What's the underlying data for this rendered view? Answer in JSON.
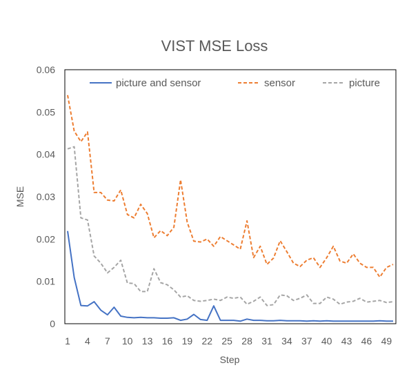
{
  "chart_data": {
    "type": "line",
    "title": "VIST MSE Loss",
    "xlabel": "Step",
    "ylabel": "MSE",
    "ylim": [
      0,
      0.06
    ],
    "y_ticks": [
      "0",
      "0.01",
      "0.02",
      "0.03",
      "0.04",
      "0.05",
      "0.06"
    ],
    "x_ticks": [
      "1",
      "4",
      "7",
      "10",
      "13",
      "16",
      "19",
      "22",
      "25",
      "28",
      "31",
      "34",
      "37",
      "40",
      "43",
      "46",
      "49"
    ],
    "x": [
      1,
      2,
      3,
      4,
      5,
      6,
      7,
      8,
      9,
      10,
      11,
      12,
      13,
      14,
      15,
      16,
      17,
      18,
      19,
      20,
      21,
      22,
      23,
      24,
      25,
      26,
      27,
      28,
      29,
      30,
      31,
      32,
      33,
      34,
      35,
      36,
      37,
      38,
      39,
      40,
      41,
      42,
      43,
      44,
      45,
      46,
      47,
      48,
      49,
      50
    ],
    "grid": false,
    "legend_position": "top",
    "series": [
      {
        "name": "picture and sensor",
        "color": "#4472c4",
        "dash": "solid",
        "values": [
          0.0219,
          0.0109,
          0.0043,
          0.0042,
          0.0052,
          0.0032,
          0.0021,
          0.0039,
          0.0018,
          0.0015,
          0.0014,
          0.0015,
          0.0014,
          0.0014,
          0.0013,
          0.0013,
          0.0014,
          0.0008,
          0.0011,
          0.0022,
          0.001,
          0.0008,
          0.0042,
          0.0008,
          0.0008,
          0.0008,
          0.0006,
          0.0011,
          0.0008,
          0.0008,
          0.0007,
          0.0007,
          0.0008,
          0.0007,
          0.0007,
          0.0007,
          0.0006,
          0.0007,
          0.0006,
          0.0007,
          0.0006,
          0.0006,
          0.0006,
          0.0006,
          0.0006,
          0.0006,
          0.0006,
          0.0007,
          0.0006,
          0.0006
        ]
      },
      {
        "name": "sensor",
        "color": "#ed7d31",
        "dash": "dashed",
        "values": [
          0.054,
          0.0455,
          0.043,
          0.0453,
          0.031,
          0.031,
          0.0292,
          0.029,
          0.0316,
          0.0258,
          0.025,
          0.0282,
          0.026,
          0.0203,
          0.022,
          0.0208,
          0.0228,
          0.034,
          0.024,
          0.0195,
          0.0193,
          0.02,
          0.0183,
          0.0206,
          0.0196,
          0.0186,
          0.0176,
          0.0243,
          0.0156,
          0.0183,
          0.014,
          0.0155,
          0.0196,
          0.017,
          0.0143,
          0.0135,
          0.015,
          0.0156,
          0.0133,
          0.0156,
          0.0183,
          0.0148,
          0.0143,
          0.0165,
          0.0143,
          0.0133,
          0.0133,
          0.011,
          0.0133,
          0.014
        ]
      },
      {
        "name": "picture",
        "color": "#a5a5a5",
        "dash": "dashed",
        "values": [
          0.0413,
          0.0418,
          0.025,
          0.0245,
          0.016,
          0.0143,
          0.012,
          0.0133,
          0.015,
          0.0096,
          0.0095,
          0.0076,
          0.0076,
          0.013,
          0.0097,
          0.0092,
          0.008,
          0.0063,
          0.0066,
          0.0055,
          0.0053,
          0.0055,
          0.0058,
          0.0055,
          0.0063,
          0.006,
          0.0063,
          0.0046,
          0.0053,
          0.0063,
          0.0043,
          0.0045,
          0.0068,
          0.0066,
          0.0055,
          0.006,
          0.0068,
          0.0048,
          0.0048,
          0.0063,
          0.0058,
          0.0046,
          0.0051,
          0.0053,
          0.006,
          0.0051,
          0.0053,
          0.0055,
          0.005,
          0.0052
        ]
      }
    ]
  }
}
